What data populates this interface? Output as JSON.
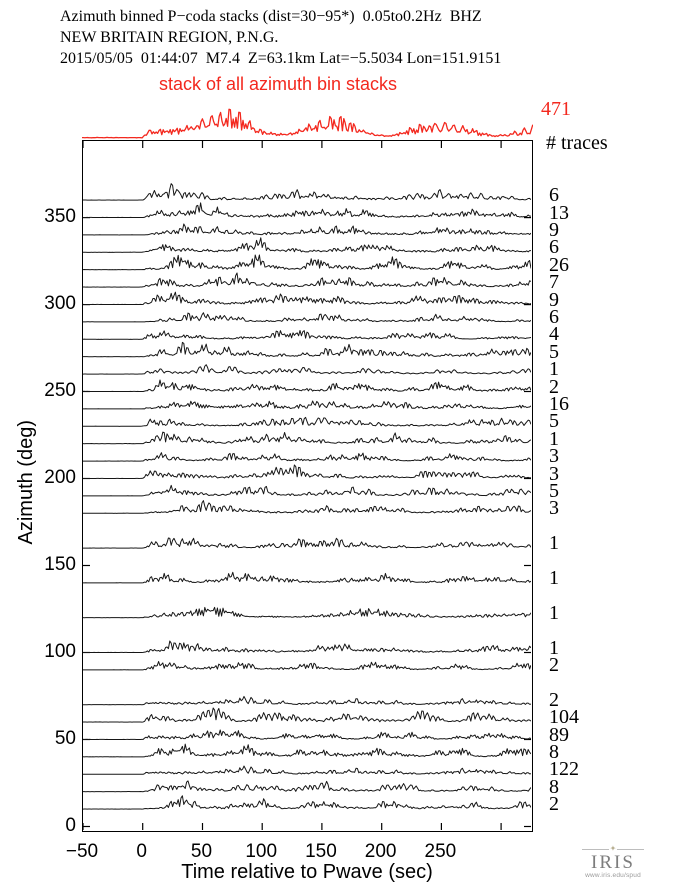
{
  "header": {
    "line1": "Azimuth binned P−coda stacks (dist=30−95*)  0.05to0.2Hz  BHZ",
    "line2": "NEW BRITAIN REGION, P.N.G.",
    "line3": "2015/05/05  01:44:07  M7.4  Z=63.1km Lat=−5.5034 Lon=151.9151"
  },
  "stack_panel": {
    "annotation": "stack of all azimuth bin stacks",
    "total_label": "471",
    "col_header": "# traces"
  },
  "colors": {
    "accent_red": "#f3281e",
    "trace_black": "#161616",
    "axis_black": "#000000"
  },
  "footer_logo": {
    "name": "IRIS",
    "url": "www.iris.edu/spud"
  },
  "chart_data": {
    "type": "line",
    "title": "Azimuth binned P−coda stacks (dist=30−95*) 0.05to0.2Hz BHZ",
    "subtitle": "NEW BRITAIN REGION, P.N.G. — 2015/05/05 01:44:07 M7.4 Z=63.1km Lat=−5.5034 Lon=151.9151",
    "xlabel": "Time relative to Pwave (sec)",
    "ylabel": "Azimuth (deg)",
    "xlim": [
      -50,
      325
    ],
    "ylim": [
      -2,
      394
    ],
    "x_ticks": [
      -50,
      0,
      50,
      100,
      150,
      200,
      250,
      300
    ],
    "x_tick_labels": [
      "−50",
      "0",
      "50",
      "100",
      "150",
      "200",
      "250",
      ""
    ],
    "y_ticks": [
      0,
      50,
      100,
      150,
      200,
      250,
      300,
      350
    ],
    "y_tick_labels": [
      "0",
      "50",
      "100",
      "150",
      "200",
      "250",
      "300",
      "350"
    ],
    "grid": false,
    "legend_position": "none",
    "stack_trace": {
      "label": "stack of all azimuth bin stacks",
      "n_traces": 471,
      "color": "red"
    },
    "bins": [
      {
        "azimuth": 360,
        "n_traces": 6
      },
      {
        "azimuth": 350,
        "n_traces": 13
      },
      {
        "azimuth": 340,
        "n_traces": 9
      },
      {
        "azimuth": 330,
        "n_traces": 6
      },
      {
        "azimuth": 320,
        "n_traces": 26
      },
      {
        "azimuth": 310,
        "n_traces": 7
      },
      {
        "azimuth": 300,
        "n_traces": 9
      },
      {
        "azimuth": 290,
        "n_traces": 6
      },
      {
        "azimuth": 280,
        "n_traces": 4
      },
      {
        "azimuth": 270,
        "n_traces": 5
      },
      {
        "azimuth": 260,
        "n_traces": 1
      },
      {
        "azimuth": 250,
        "n_traces": 2
      },
      {
        "azimuth": 240,
        "n_traces": 16
      },
      {
        "azimuth": 230,
        "n_traces": 5
      },
      {
        "azimuth": 220,
        "n_traces": 1
      },
      {
        "azimuth": 210,
        "n_traces": 3
      },
      {
        "azimuth": 200,
        "n_traces": 3
      },
      {
        "azimuth": 190,
        "n_traces": 5
      },
      {
        "azimuth": 180,
        "n_traces": 3
      },
      {
        "azimuth": 160,
        "n_traces": 1
      },
      {
        "azimuth": 140,
        "n_traces": 1
      },
      {
        "azimuth": 120,
        "n_traces": 1
      },
      {
        "azimuth": 100,
        "n_traces": 1
      },
      {
        "azimuth": 90,
        "n_traces": 2
      },
      {
        "azimuth": 70,
        "n_traces": 2
      },
      {
        "azimuth": 60,
        "n_traces": 104
      },
      {
        "azimuth": 50,
        "n_traces": 89
      },
      {
        "azimuth": 40,
        "n_traces": 8
      },
      {
        "azimuth": 30,
        "n_traces": 122
      },
      {
        "azimuth": 20,
        "n_traces": 8
      },
      {
        "azimuth": 10,
        "n_traces": 2
      }
    ]
  }
}
